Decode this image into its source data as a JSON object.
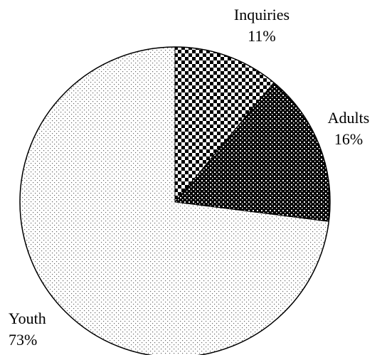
{
  "chart_data": {
    "type": "pie",
    "title": "",
    "slices": [
      {
        "label": "Inquiries",
        "value": 11,
        "value_label": "11%",
        "pattern": "checkerboard",
        "color": "#000000"
      },
      {
        "label": "Adults",
        "value": 16,
        "value_label": "16%",
        "pattern": "dense-dots",
        "color": "#000000"
      },
      {
        "label": "Youth",
        "value": 73,
        "value_label": "73%",
        "pattern": "sparse-dots",
        "color": "#888888"
      }
    ],
    "start_angle_deg": 0,
    "direction": "clockwise",
    "legend": "none"
  }
}
